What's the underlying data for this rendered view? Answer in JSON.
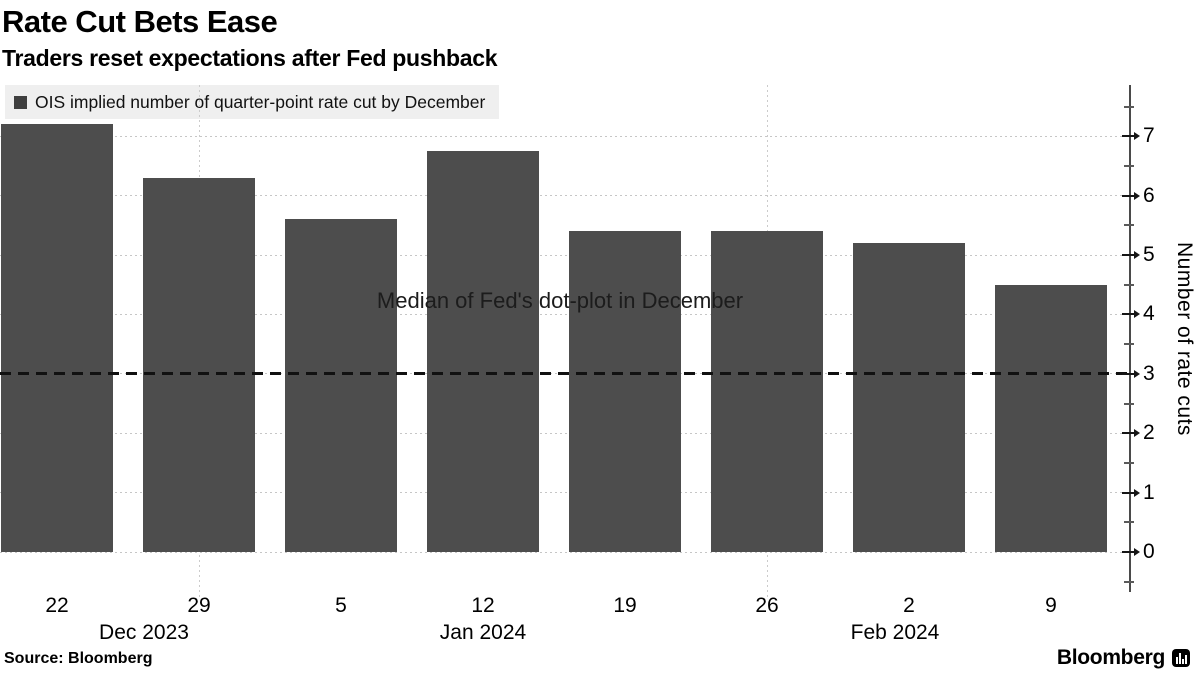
{
  "header": {
    "title": "Rate Cut Bets Ease",
    "subtitle": "Traders reset expectations after Fed pushback"
  },
  "legend": {
    "label": "OIS implied number of quarter-point rate cut by December",
    "swatch_color": "#3f3f3f"
  },
  "annotation": "Median of Fed's dot-plot in December",
  "axis": {
    "ylabel": "Number of rate cuts",
    "yticks": [
      0,
      1,
      2,
      3,
      4,
      5,
      6,
      7
    ]
  },
  "footer": {
    "source": "Source: Bloomberg",
    "brand": "Bloomberg"
  },
  "chart_data": {
    "type": "bar",
    "categories": [
      "Dec 22",
      "Dec 29",
      "Jan 5",
      "Jan 12",
      "Jan 19",
      "Jan 26",
      "Feb 2",
      "Feb 9"
    ],
    "tick_labels": [
      "22",
      "29",
      "5",
      "12",
      "19",
      "26",
      "2",
      "9"
    ],
    "month_labels": [
      "Dec 2023",
      "Jan 2024",
      "Feb 2024"
    ],
    "values": [
      7.2,
      6.3,
      5.6,
      6.75,
      5.4,
      5.4,
      5.2,
      4.5
    ],
    "series_name": "OIS implied number of quarter-point rate cut by December",
    "bar_color": "#4d4d4d",
    "ylabel": "Number of rate cuts",
    "ylim": [
      0,
      7.9
    ],
    "yticks": [
      0,
      1,
      2,
      3,
      4,
      5,
      6,
      7
    ],
    "grid": "dotted horizontal lines at each integer; dotted vertical lines at month-end data points (Dec 29, Jan 26)",
    "month_gridline_indices": [
      1,
      5
    ],
    "reference_line": {
      "value": 3,
      "style": "black dashed",
      "label": "Median of Fed's dot-plot in December"
    },
    "legend_position": "top-left",
    "title": "Rate Cut Bets Ease",
    "subtitle": "Traders reset expectations after Fed pushback"
  }
}
